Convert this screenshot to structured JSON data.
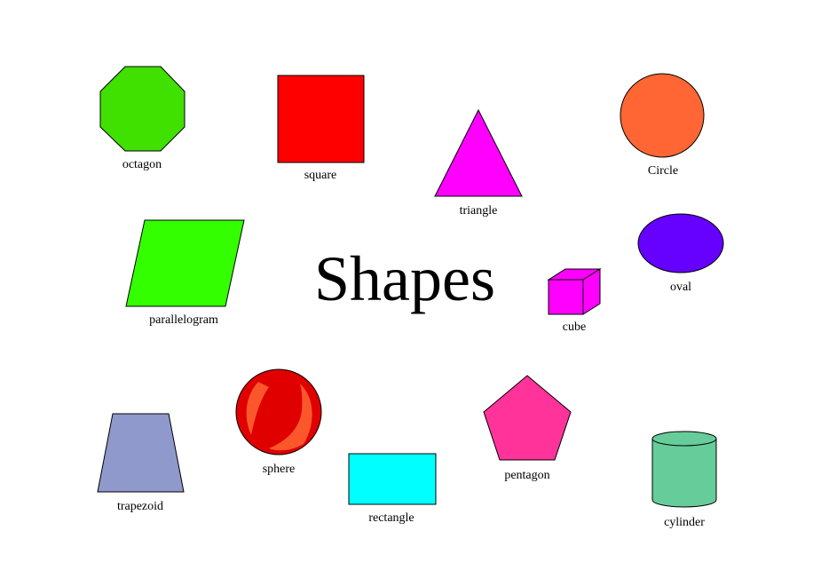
{
  "title": "Shapes",
  "shapes": [
    {
      "id": "octagon",
      "label": "octagon",
      "color": "#40E000"
    },
    {
      "id": "square",
      "label": "square",
      "color": "#FF0000"
    },
    {
      "id": "triangle",
      "label": "triangle",
      "color": "#FF00FF"
    },
    {
      "id": "circle",
      "label": "Circle",
      "color": "#FF6633"
    },
    {
      "id": "parallelogram",
      "label": "parallelogram",
      "color": "#33FF00"
    },
    {
      "id": "cube",
      "label": "cube",
      "color": "#FF00FF"
    },
    {
      "id": "oval",
      "label": "oval",
      "color": "#6600FF"
    },
    {
      "id": "trapezoid",
      "label": "trapezoid",
      "color": "#8F99CC"
    },
    {
      "id": "sphere",
      "label": "sphere",
      "color": "#E00000"
    },
    {
      "id": "rectangle",
      "label": "rectangle",
      "color": "#00FFFF"
    },
    {
      "id": "pentagon",
      "label": "pentagon",
      "color": "#FF3399"
    },
    {
      "id": "cylinder",
      "label": "cylinder",
      "color": "#66CC99"
    }
  ]
}
